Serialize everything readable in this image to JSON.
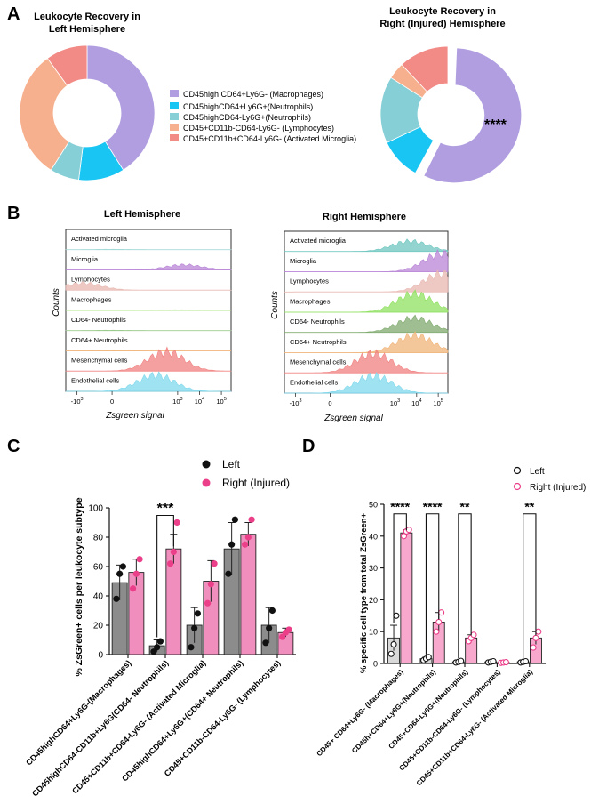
{
  "panels": {
    "a": "A",
    "b": "B",
    "c": "C",
    "d": "D"
  },
  "panel_a": {
    "left_title": [
      "Leukocyte Recovery in",
      "Left Hemisphere"
    ],
    "right_title": [
      "Leukocyte Recovery in",
      "Right (Injured) Hemisphere"
    ],
    "significance": "****",
    "legend": [
      {
        "label": "CD45high CD64+Ly6G- (Macrophages)",
        "color": "#b09ee0"
      },
      {
        "label": "CD45highCD64+Ly6G+(Neutrophils)",
        "color": "#19c5f2"
      },
      {
        "label": "CD45highCD64-Ly6G+(Neutrophils)",
        "color": "#86cfd6"
      },
      {
        "label": "CD45+CD11b-CD64-Ly6G- (Lymphocytes)",
        "color": "#f6b08e"
      },
      {
        "label": "CD45+CD11b+CD64-Ly6G- (Activated Microglia)",
        "color": "#f28a86"
      }
    ]
  },
  "chart_data": [
    {
      "type": "pie",
      "title": "Leukocyte Recovery in Left Hemisphere",
      "labels": [
        "CD45high CD64+Ly6G- (Macrophages)",
        "CD45highCD64+Ly6G+(Neutrophils)",
        "CD45highCD64-Ly6G+(Neutrophils)",
        "CD45+CD11b-CD64-Ly6G- (Lymphocytes)",
        "CD45+CD11b+CD64-Ly6G- (Activated Microglia)"
      ],
      "values": [
        41,
        11,
        7,
        31,
        10
      ],
      "colors": [
        "#b09ee0",
        "#19c5f2",
        "#86cfd6",
        "#f6b08e",
        "#f28a86"
      ]
    },
    {
      "type": "pie",
      "title": "Leukocyte Recovery in Right (Injured) Hemisphere",
      "labels": [
        "CD45high CD64+Ly6G- (Macrophages)",
        "CD45highCD64+Ly6G+(Neutrophils)",
        "CD45highCD64-Ly6G+(Neutrophils)",
        "CD45+CD11b-CD64-Ly6G- (Lymphocytes)",
        "CD45+CD11b+CD64-Ly6G- (Activated Microglia)"
      ],
      "values": [
        58,
        10,
        16,
        4,
        12
      ],
      "colors": [
        "#b09ee0",
        "#19c5f2",
        "#86cfd6",
        "#f6b08e",
        "#f28a86"
      ],
      "exploded": "CD45high CD64+Ly6G- (Macrophages)"
    },
    {
      "type": "area",
      "title": "Left Hemisphere",
      "ylabel": "Counts",
      "xlabel": "Zsgreen signal",
      "xticks": [
        "-10",
        "0",
        "10",
        "10",
        "10"
      ],
      "xtick_exp": [
        "3",
        "",
        "3",
        "4",
        "5"
      ],
      "xtick_pos": [
        -1000,
        0,
        1000,
        10000,
        100000
      ],
      "tracks": [
        {
          "name": "Activated microglia",
          "color": "#a3d9d6",
          "peak": 0,
          "height": 0.02
        },
        {
          "name": "Microglia",
          "color": "#b884d6",
          "peak": 2000,
          "height": 0.25
        },
        {
          "name": "Lymphocytes",
          "color": "#e8b7b0",
          "peak": -300,
          "height": 0.35
        },
        {
          "name": "Macrophages",
          "color": "#a8e07c",
          "peak": 1000,
          "height": 0.03
        },
        {
          "name": "CD64- Neutrophils",
          "color": "#9acb8c",
          "peak": 0,
          "height": 0.02
        },
        {
          "name": "CD64+ Neutrophils",
          "color": "#f0b47a",
          "peak": 0,
          "height": 0.02
        },
        {
          "name": "Mesenchymal cells",
          "color": "#f08080",
          "peak": 300,
          "height": 0.95
        },
        {
          "name": "Endothelial cells",
          "color": "#7fd8ec",
          "peak": 100,
          "height": 0.8
        }
      ]
    },
    {
      "type": "area",
      "title": "Right Hemisphere",
      "ylabel": "Counts",
      "xlabel": "Zsgreen signal",
      "xticks": [
        "-10",
        "0",
        "10",
        "10",
        "10"
      ],
      "xtick_exp": [
        "3",
        "",
        "3",
        "4",
        "5"
      ],
      "xtick_pos": [
        -1000,
        0,
        1000,
        10000,
        100000
      ],
      "tracks": [
        {
          "name": "Activated microglia",
          "color": "#6fc6c0",
          "peak": 5000,
          "height": 0.5
        },
        {
          "name": "Microglia",
          "color": "#b884d6",
          "peak": 150000,
          "height": 0.9
        },
        {
          "name": "Lymphocytes",
          "color": "#e8b7b0",
          "peak": 150000,
          "height": 0.9
        },
        {
          "name": "Macrophages",
          "color": "#8fe060",
          "peak": 8000,
          "height": 0.9
        },
        {
          "name": "CD64- Neutrophils",
          "color": "#7faa6e",
          "peak": 8000,
          "height": 0.7
        },
        {
          "name": "CD64+ Neutrophils",
          "color": "#f0b47a",
          "peak": 8000,
          "height": 0.85
        },
        {
          "name": "Mesenchymal cells",
          "color": "#f08080",
          "peak": 100,
          "height": 0.95
        },
        {
          "name": "Endothelial cells",
          "color": "#7fd8ec",
          "peak": 100,
          "height": 0.85
        }
      ]
    },
    {
      "type": "bar",
      "ylabel": "% ZsGreen+ cells per leukocyte subtype",
      "ylim": [
        0,
        100
      ],
      "yticks": [
        0,
        20,
        40,
        60,
        80,
        100
      ],
      "categories": [
        "CD45highCD64+Ly6G-(Macrophages)",
        "CD45highCD64-CD11b+Ly6G(CD64- Neutrophils)",
        "CD45+CD11b+CD64-Ly6G- (Activated Microglia)",
        "CD45highCD64+Ly6G+(CD64+ Neutrophils)",
        "CD45+CD11b-CD64-Ly6G- (Lymphocytes)"
      ],
      "series": [
        {
          "name": "Left",
          "color": "#8c8c8c",
          "marker": "#111111",
          "values": [
            49,
            6,
            20,
            72,
            20
          ],
          "errors": [
            12,
            4,
            12,
            18,
            12
          ],
          "points": [
            [
              38,
              55,
              60
            ],
            [
              2,
              5,
              9
            ],
            [
              5,
              18,
              28
            ],
            [
              55,
              75,
              92
            ],
            [
              8,
              18,
              30
            ]
          ]
        },
        {
          "name": "Right (Injured)",
          "color": "#f08fbd",
          "marker": "#ec3f8a",
          "values": [
            56,
            72,
            50,
            82,
            15
          ],
          "errors": [
            9,
            10,
            14,
            8,
            3
          ],
          "points": [
            [
              45,
              55,
              65
            ],
            [
              62,
              70,
              90
            ],
            [
              35,
              48,
              62
            ],
            [
              75,
              80,
              92
            ],
            [
              12,
              15,
              17
            ]
          ]
        }
      ],
      "significance": [
        {
          "category": 1,
          "label": "***"
        }
      ]
    },
    {
      "type": "bar",
      "ylabel": "% specific cell type from total ZsGreen+",
      "ylim": [
        0,
        50
      ],
      "yticks": [
        0,
        10,
        20,
        30,
        40,
        50
      ],
      "categories": [
        "CD45+ CD64+Ly6G- (Macrophages)",
        "CD45h+CD64+Ly6G+(Neutrophils)",
        "CD45+CD64-Ly6G+(Neutrophils)",
        "CD45+CD11b-CD64-Ly6G- (Lymphocytes)",
        "CD45+CD11b+CD64-Ly6G- (Activated Microglia)"
      ],
      "series": [
        {
          "name": "Left",
          "color": "#d9d9d9",
          "marker": "#111111",
          "values": [
            8,
            1.5,
            0.5,
            0.5,
            0.5
          ],
          "errors": [
            4,
            0.5,
            0.3,
            0.3,
            0.3
          ],
          "points": [
            [
              3,
              6,
              15
            ],
            [
              1,
              1.5,
              2
            ],
            [
              0.3,
              0.5,
              0.8
            ],
            [
              0.3,
              0.5,
              0.7
            ],
            [
              0.3,
              0.5,
              0.7
            ]
          ]
        },
        {
          "name": "Right (Injured)",
          "color": "#f7a8cc",
          "marker": "#ec3f8a",
          "values": [
            41,
            13,
            8,
            0.3,
            8
          ],
          "errors": [
            1,
            3,
            1,
            0.2,
            2
          ],
          "points": [
            [
              40,
              41.5,
              42
            ],
            [
              10,
              13,
              16
            ],
            [
              7,
              8,
              9
            ],
            [
              0.2,
              0.3,
              0.4
            ],
            [
              5,
              8,
              10
            ]
          ]
        }
      ],
      "significance": [
        {
          "category": 0,
          "label": "****"
        },
        {
          "category": 1,
          "label": "****"
        },
        {
          "category": 2,
          "label": "**"
        },
        {
          "category": 4,
          "label": "**"
        }
      ]
    }
  ]
}
